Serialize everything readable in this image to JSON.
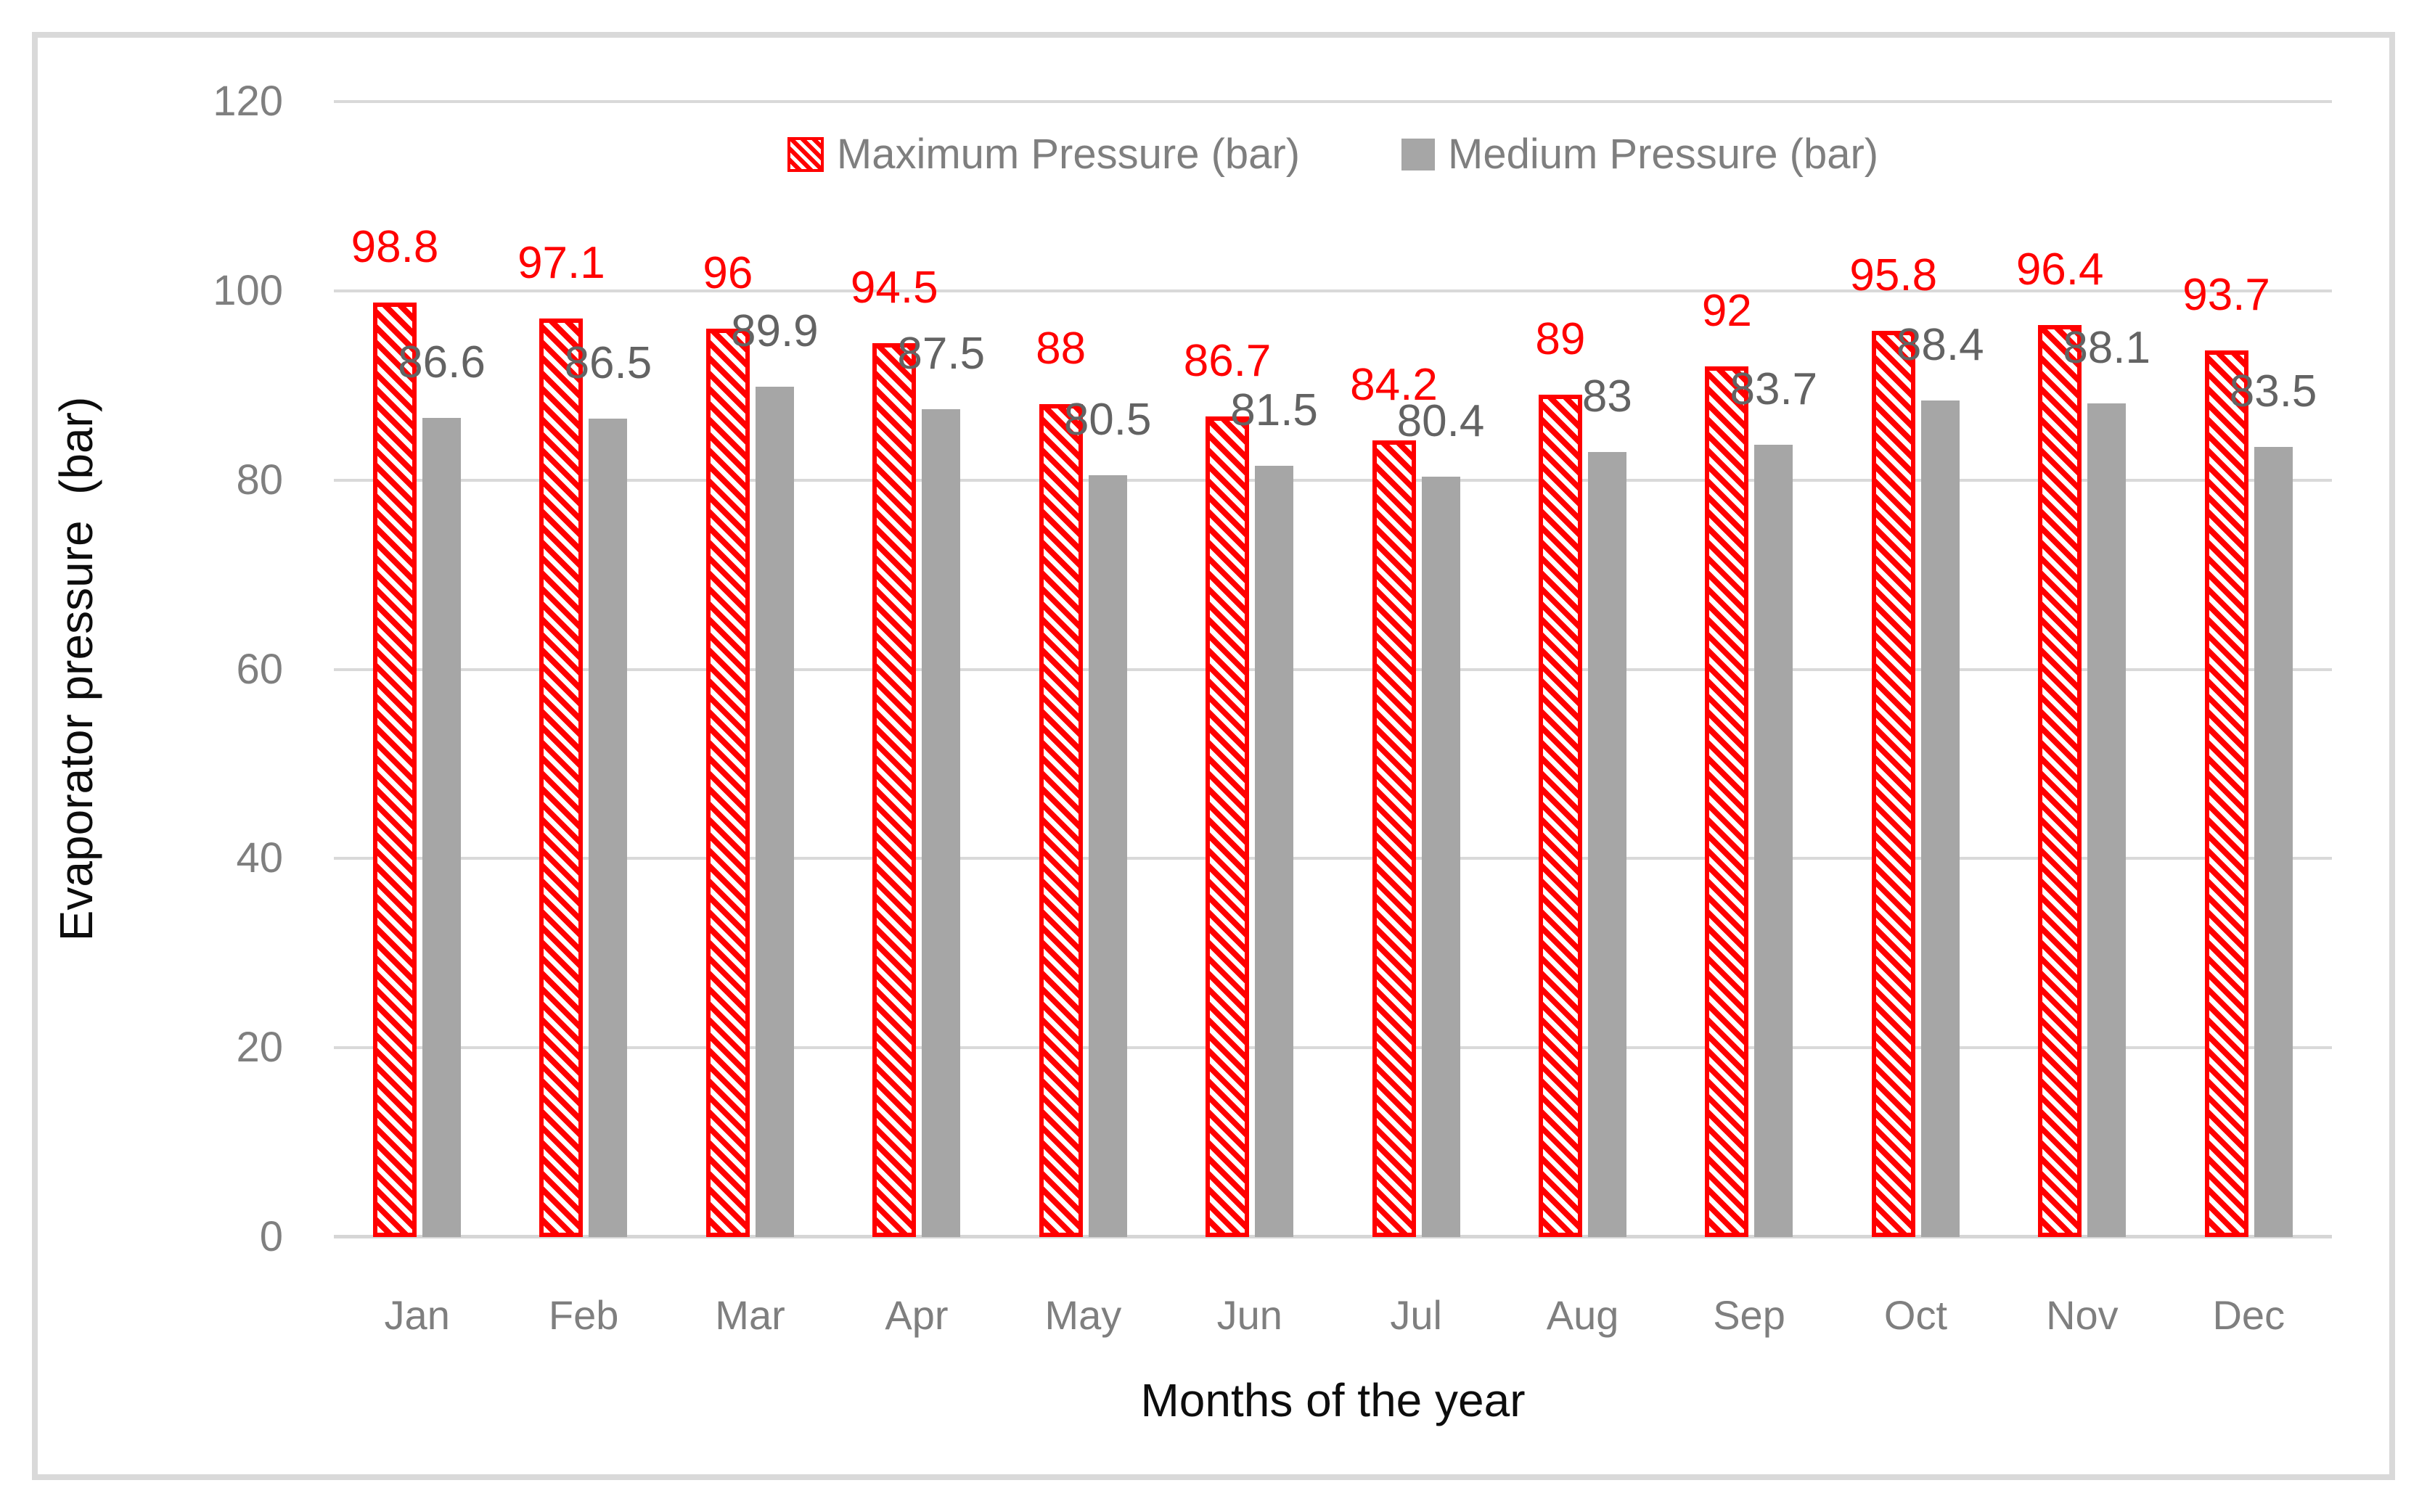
{
  "legend": {
    "maximum": "Maximum Pressure (bar)",
    "medium": "Medium Pressure (bar)"
  },
  "colors": {
    "maximum_series": "#ff0000",
    "medium_series": "#a6a6a6",
    "gridline": "#d9d9d9",
    "tick_text": "#7f7f7f",
    "medium_data_label": "#636363",
    "axis_title_text": "#0d0d0d"
  },
  "chart_data": {
    "type": "bar",
    "title": "",
    "xlabel": "Months of the year",
    "ylabel": "Evaporator pressure  (bar)",
    "ylim": [
      0,
      120
    ],
    "yticks": [
      0,
      20,
      40,
      60,
      80,
      100,
      120
    ],
    "grid": true,
    "legend_position": "top-center",
    "categories": [
      "Jan",
      "Feb",
      "Mar",
      "Apr",
      "May",
      "Jun",
      "Jul",
      "Aug",
      "Sep",
      "Oct",
      "Nov",
      "Dec"
    ],
    "series": [
      {
        "name": "Maximum Pressure (bar)",
        "color": "#ff0000",
        "pattern": "diagonal-hatch",
        "values": [
          98.8,
          97.1,
          96,
          94.5,
          88,
          86.7,
          84.2,
          89,
          92,
          95.8,
          96.4,
          93.7
        ]
      },
      {
        "name": "Medium Pressure (bar)",
        "color": "#a6a6a6",
        "pattern": "solid",
        "values": [
          86.6,
          86.5,
          89.9,
          87.5,
          80.5,
          81.5,
          80.4,
          83,
          83.7,
          88.4,
          88.1,
          83.5
        ]
      }
    ]
  }
}
